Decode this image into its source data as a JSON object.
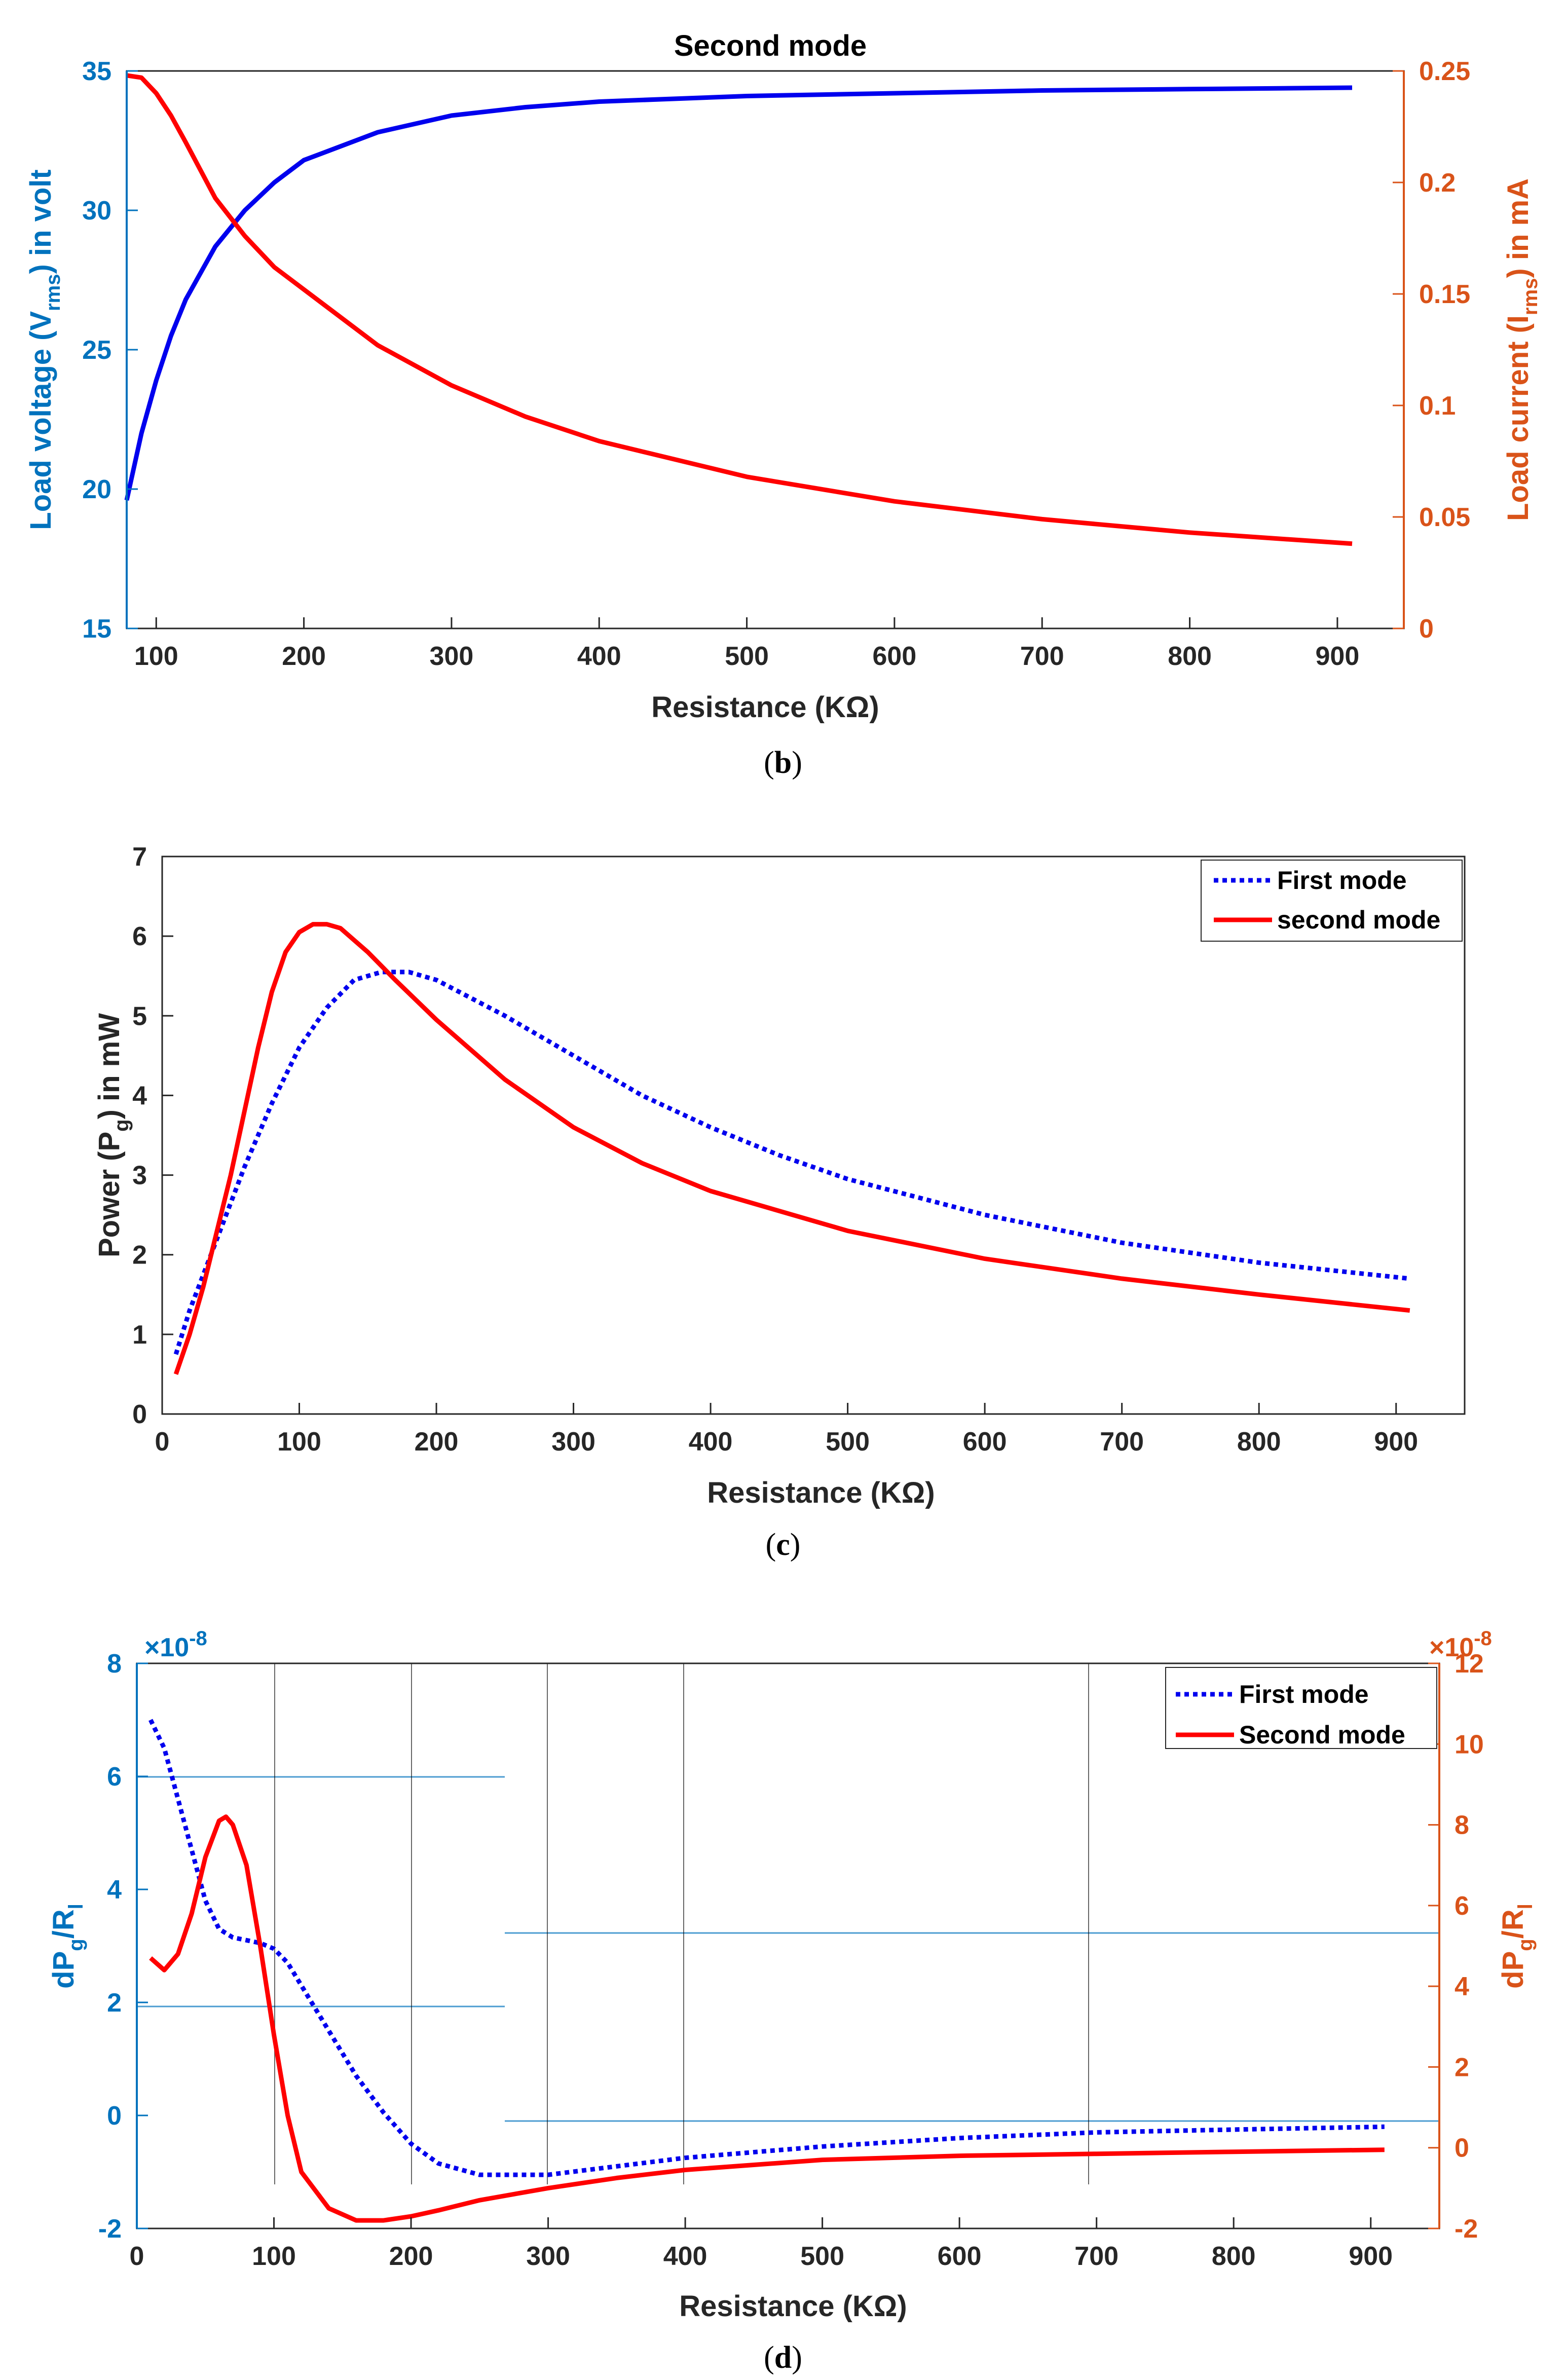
{
  "colors": {
    "blue": "#0000ee",
    "red": "#ff0000",
    "leftAxis": "#0072bd",
    "rightAxis": "#d95319",
    "dark": "#262626",
    "grid": "#0072bd"
  },
  "chart_data": [
    {
      "id": "b",
      "type": "line",
      "title": "Second mode",
      "caption": {
        "open": "(",
        "letter": "b",
        "close": ")"
      },
      "xlabel": "Resistance (KΩ)",
      "xlim": [
        80,
        945
      ],
      "xticks": [
        100,
        200,
        300,
        400,
        500,
        600,
        700,
        800,
        900
      ],
      "ylabel_left": {
        "main": "Load voltage (V",
        "sub": "rms",
        "tail": ") in volt"
      },
      "ylim_left": [
        15,
        35
      ],
      "yticks_left": [
        15,
        20,
        25,
        30,
        35
      ],
      "ylabel_right": {
        "main": "Load current (I",
        "sub": "rms",
        "tail": ") in mA"
      },
      "ylim_right": [
        0,
        0.25
      ],
      "yticks_right": [
        "0",
        "0.05",
        "0.1",
        "0.15",
        "0.2",
        "0.25"
      ],
      "series": [
        {
          "name": "Load voltage",
          "axis": "left",
          "color": "#0000ee",
          "style": "solid",
          "x": [
            80,
            90,
            100,
            110,
            120,
            140,
            160,
            180,
            200,
            250,
            300,
            350,
            400,
            500,
            600,
            700,
            800,
            910
          ],
          "y": [
            19.6,
            22.0,
            23.9,
            25.5,
            26.8,
            28.7,
            30.0,
            31.0,
            31.8,
            32.8,
            33.4,
            33.7,
            33.9,
            34.1,
            34.2,
            34.3,
            34.35,
            34.4
          ]
        },
        {
          "name": "Load current",
          "axis": "right",
          "color": "#ff0000",
          "style": "solid",
          "x": [
            80,
            90,
            100,
            110,
            120,
            140,
            160,
            180,
            200,
            250,
            300,
            350,
            400,
            500,
            600,
            700,
            800,
            910
          ],
          "y": [
            0.248,
            0.247,
            0.24,
            0.23,
            0.218,
            0.193,
            0.176,
            0.162,
            0.152,
            0.127,
            0.109,
            0.095,
            0.084,
            0.068,
            0.057,
            0.049,
            0.043,
            0.038
          ]
        }
      ]
    },
    {
      "id": "c",
      "type": "line",
      "caption": {
        "open": "(",
        "letter": "c",
        "close": ")"
      },
      "xlabel": "Resistance (KΩ)",
      "xlim": [
        0,
        950
      ],
      "xticks": [
        0,
        100,
        200,
        300,
        400,
        500,
        600,
        700,
        800,
        900
      ],
      "ylabel": {
        "main": "Power (P",
        "sub": "g",
        "tail": ") in mW"
      },
      "ylim": [
        0,
        7
      ],
      "yticks": [
        0,
        1,
        2,
        3,
        4,
        5,
        6,
        7
      ],
      "legend": {
        "position": "top-right",
        "entries": [
          "First mode",
          "second mode"
        ]
      },
      "series": [
        {
          "name": "First mode",
          "color": "#0000ee",
          "style": "dotted",
          "x": [
            10,
            20,
            40,
            60,
            80,
            100,
            120,
            140,
            160,
            180,
            200,
            250,
            300,
            350,
            400,
            450,
            500,
            600,
            700,
            800,
            910
          ],
          "y": [
            0.75,
            1.3,
            2.2,
            3.1,
            3.9,
            4.6,
            5.1,
            5.45,
            5.55,
            5.55,
            5.45,
            5.0,
            4.5,
            4.0,
            3.6,
            3.25,
            2.95,
            2.5,
            2.15,
            1.9,
            1.7
          ]
        },
        {
          "name": "second mode",
          "color": "#ff0000",
          "style": "solid",
          "x": [
            10,
            20,
            30,
            40,
            50,
            60,
            70,
            80,
            90,
            100,
            110,
            120,
            130,
            140,
            150,
            170,
            200,
            250,
            300,
            350,
            400,
            500,
            600,
            700,
            800,
            910
          ],
          "y": [
            0.5,
            1.0,
            1.6,
            2.3,
            3.0,
            3.8,
            4.6,
            5.3,
            5.8,
            6.05,
            6.15,
            6.15,
            6.1,
            5.95,
            5.8,
            5.45,
            4.95,
            4.2,
            3.6,
            3.15,
            2.8,
            2.3,
            1.95,
            1.7,
            1.5,
            1.3
          ]
        }
      ]
    },
    {
      "id": "d",
      "type": "line",
      "caption": {
        "open": "(",
        "letter": "d",
        "close": ")"
      },
      "xlabel": "Resistance (KΩ)",
      "xlim": [
        0,
        950
      ],
      "xticks": [
        0,
        100,
        200,
        300,
        400,
        500,
        600,
        700,
        800,
        900
      ],
      "ylabel_left": {
        "main": "dP",
        "sub": "g",
        "mid": "/R",
        "sub2": "l"
      },
      "ylim_left": [
        -2,
        8
      ],
      "yticks_left": [
        "-2",
        "0",
        "2",
        "4",
        "6",
        "8"
      ],
      "exponent_left": {
        "base": "×10",
        "exp": "-8"
      },
      "ylabel_right": {
        "main": "dP",
        "sub": "g",
        "mid": "/R",
        "sub2": "l"
      },
      "ylim_right": [
        -2,
        12
      ],
      "yticks_right": [
        "-2",
        "0",
        "2",
        "4",
        "6",
        "8",
        "10",
        "12"
      ],
      "exponent_right": {
        "base": "×10",
        "exp": "-8"
      },
      "legend": {
        "position": "top-right",
        "entries": [
          "First mode",
          "Second mode"
        ]
      },
      "series": [
        {
          "name": "First mode",
          "axis": "left",
          "color": "#0000ee",
          "style": "dotted",
          "x": [
            10,
            20,
            30,
            40,
            50,
            60,
            70,
            80,
            90,
            100,
            110,
            120,
            140,
            160,
            180,
            200,
            220,
            250,
            300,
            350,
            400,
            500,
            600,
            700,
            800,
            910
          ],
          "y": [
            7.0,
            6.5,
            5.6,
            4.7,
            3.8,
            3.3,
            3.15,
            3.1,
            3.05,
            2.95,
            2.7,
            2.3,
            1.5,
            0.7,
            0.05,
            -0.5,
            -0.85,
            -1.05,
            -1.05,
            -0.9,
            -0.75,
            -0.55,
            -0.4,
            -0.3,
            -0.25,
            -0.2
          ]
        },
        {
          "name": "Second mode",
          "axis": "right",
          "color": "#ff0000",
          "style": "solid",
          "x": [
            10,
            20,
            30,
            40,
            50,
            60,
            65,
            70,
            80,
            90,
            100,
            110,
            120,
            140,
            160,
            180,
            200,
            220,
            250,
            300,
            350,
            400,
            500,
            600,
            700,
            800,
            910
          ],
          "y": [
            4.7,
            4.4,
            4.8,
            5.8,
            7.2,
            8.1,
            8.2,
            8.0,
            7.0,
            5.0,
            2.8,
            0.8,
            -0.6,
            -1.5,
            -1.8,
            -1.8,
            -1.7,
            -1.55,
            -1.3,
            -1.0,
            -0.75,
            -0.55,
            -0.3,
            -0.2,
            -0.15,
            -0.1,
            -0.05
          ]
        }
      ]
    }
  ]
}
